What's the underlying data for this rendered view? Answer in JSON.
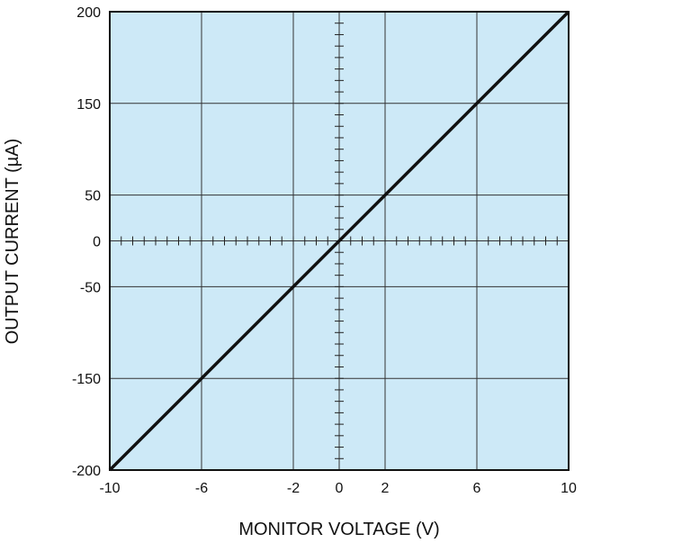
{
  "chart_data": {
    "type": "line",
    "title": "",
    "xlabel": "MONITOR VOLTAGE (V)",
    "ylabel": "OUTPUT CURRENT (µA)",
    "xlim": [
      -10,
      10
    ],
    "ylim": [
      -200,
      200
    ],
    "x_ticks": [
      "-10",
      "-6",
      "-2",
      "0",
      "2",
      "6",
      "10"
    ],
    "y_ticks": [
      "-200",
      "-150",
      "-50",
      "0",
      "50",
      "150",
      "200"
    ],
    "grid": true,
    "series": [
      {
        "x": [
          -10,
          -6,
          -2,
          0,
          2,
          6,
          10
        ],
        "y": [
          -200,
          -150,
          -50,
          0,
          50,
          150,
          200
        ]
      }
    ],
    "colors": {
      "plot_background": "#cde9f7",
      "line": "#111111",
      "grid": "#333333"
    }
  }
}
